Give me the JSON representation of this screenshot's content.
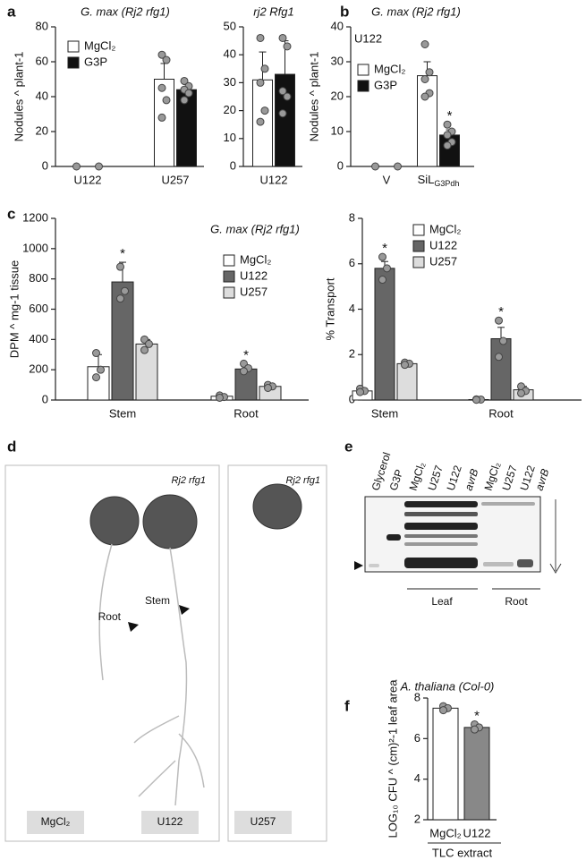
{
  "chart_data": [
    {
      "type": "bar",
      "panel": "a",
      "title": "G. max (Rj2 rfg1)",
      "ylabel": "Nodules ^ plant-1",
      "categories": [
        "U122",
        "U257"
      ],
      "series": [
        {
          "name": "MgCl₂",
          "color": "#ffffff",
          "values": [
            0,
            50
          ],
          "errors": [
            0,
            9
          ],
          "points": [
            [
              0
            ],
            [
              64,
              61,
              45,
              38,
              28
            ]
          ]
        },
        {
          "name": "G3P",
          "color": "#111111",
          "values": [
            0,
            44
          ],
          "errors": [
            0,
            3
          ],
          "points": [
            [
              0
            ],
            [
              49,
              46,
              44,
              42,
              38
            ]
          ]
        }
      ],
      "ylim": [
        0,
        80
      ],
      "yticks": [
        0,
        20,
        40,
        60,
        80
      ],
      "legend": "upper left"
    },
    {
      "type": "bar",
      "title": "rj2 Rfg1",
      "categories": [
        "U122"
      ],
      "series": [
        {
          "color": "#ffffff",
          "values": [
            31
          ],
          "errors": [
            10
          ],
          "points": [
            [
              46,
              35,
              30,
              20,
              16
            ]
          ]
        },
        {
          "color": "#111111",
          "values": [
            33
          ],
          "errors": [
            12
          ],
          "points": [
            [
              46,
              43,
              27,
              25,
              19
            ]
          ]
        }
      ],
      "ylim": [
        0,
        50
      ],
      "yticks": [
        0,
        10,
        20,
        30,
        40,
        50
      ]
    },
    {
      "type": "bar",
      "panel": "b",
      "title": "G. max (Rj2 rfg1)",
      "subtitle": "U122",
      "ylabel": "Nodules ^ plant-1",
      "categories": [
        "V",
        {
          "text": "SiL",
          "sub": "G3Pdh"
        }
      ],
      "series": [
        {
          "name": "MgCl₂",
          "color": "#ffffff",
          "values": [
            0,
            26
          ],
          "errors": [
            0,
            4
          ],
          "points": [
            [
              0
            ],
            [
              35,
              27,
              25,
              21,
              20
            ]
          ]
        },
        {
          "name": "G3P",
          "color": "#111111",
          "values": [
            0,
            9
          ],
          "errors": [
            0,
            1.5
          ],
          "points": [
            [
              0
            ],
            [
              12,
              10,
              9,
              7,
              6
            ]
          ]
        }
      ],
      "annotations": [
        {
          "text": "*",
          "series": 1,
          "category": 1
        }
      ],
      "ylim": [
        0,
        40
      ],
      "yticks": [
        0,
        10,
        20,
        30,
        40
      ],
      "legend": "upper left"
    },
    {
      "type": "bar",
      "panel": "c",
      "title": "G. max (Rj2 rfg1)",
      "ylabel": "DPM ^ mg-1 tissue",
      "categories": [
        "Stem",
        "Root"
      ],
      "series": [
        {
          "name": "MgCl₂",
          "color": "#ffffff",
          "values": [
            220,
            25
          ],
          "errors": [
            80,
            10
          ],
          "points": [
            [
              310,
              200,
              150
            ],
            [
              30,
              20,
              15
            ]
          ]
        },
        {
          "name": "U122",
          "color": "#666666",
          "values": [
            780,
            205
          ],
          "errors": [
            130,
            20
          ],
          "points": [
            [
              880,
              720,
              670
            ],
            [
              240,
              210,
              190
            ]
          ]
        },
        {
          "name": "U257",
          "color": "#dddddd",
          "values": [
            370,
            90
          ],
          "errors": [
            30,
            10
          ],
          "points": [
            [
              400,
              370,
              330
            ],
            [
              100,
              90,
              80
            ]
          ]
        }
      ],
      "annotations": [
        {
          "text": "*",
          "series": 1,
          "category": 0
        },
        {
          "text": "*",
          "series": 1,
          "category": 1
        }
      ],
      "ylim": [
        0,
        1200
      ],
      "yticks": [
        0,
        200,
        400,
        600,
        800,
        1000,
        1200
      ],
      "legend": "upper right"
    },
    {
      "type": "bar",
      "ylabel": "% Transport",
      "categories": [
        "Stem",
        "Root"
      ],
      "series": [
        {
          "name": "MgCl₂",
          "color": "#ffffff",
          "values": [
            0.4,
            0.02
          ],
          "errors": [
            0.1,
            0.01
          ],
          "points": [
            [
              0.5,
              0.4,
              0.35
            ],
            [
              0.03,
              0.02,
              0.01
            ]
          ]
        },
        {
          "name": "U122",
          "color": "#666666",
          "values": [
            5.8,
            2.7
          ],
          "errors": [
            0.3,
            0.5
          ],
          "points": [
            [
              6.3,
              5.8,
              5.3
            ],
            [
              3.5,
              2.6,
              1.9
            ]
          ]
        },
        {
          "name": "U257",
          "color": "#dddddd",
          "values": [
            1.6,
            0.45
          ],
          "errors": [
            0.05,
            0.15
          ],
          "points": [
            [
              1.65,
              1.6,
              1.55
            ],
            [
              0.6,
              0.4,
              0.3
            ]
          ]
        }
      ],
      "annotations": [
        {
          "text": "*",
          "series": 1,
          "category": 0
        },
        {
          "text": "*",
          "series": 1,
          "category": 1
        }
      ],
      "ylim": [
        0,
        8
      ],
      "yticks": [
        0,
        2,
        4,
        6,
        8
      ],
      "legend": "upper right"
    },
    {
      "type": "bar",
      "panel": "f",
      "title": "A. thaliana (Col-0)",
      "ylabel": "LOG₁₀ CFU ^ (cm)²-1 leaf area",
      "categories": [
        "MgCl₂",
        "U122"
      ],
      "group_label": "TLC extract",
      "series": [
        {
          "colors": [
            "#ffffff",
            "#888888"
          ],
          "values": [
            7.5,
            6.55
          ],
          "errors": [
            0.1,
            0.1
          ],
          "points": [
            [
              7.6,
              7.5,
              7.4
            ],
            [
              6.7,
              6.55,
              6.45
            ]
          ]
        }
      ],
      "annotations": [
        {
          "text": "*",
          "series": 0,
          "category": 1
        }
      ],
      "ylim": [
        2,
        8
      ],
      "yticks": [
        2,
        4,
        6,
        8
      ]
    }
  ],
  "panel_d": {
    "panel": "d",
    "genotype": [
      "Rj2 rfg1",
      "Rj2 rfg1"
    ],
    "stem": "Stem",
    "root": "Root",
    "treatments": [
      "MgCl₂",
      "U122",
      "U257"
    ]
  },
  "panel_e": {
    "panel": "e",
    "lanes": [
      "Glycerol",
      "G3P",
      "MgCl₂",
      "U257",
      "U122",
      "avrB",
      "MgCl₂",
      "U257",
      "U122",
      "avrB"
    ],
    "groups": [
      "Leaf",
      "Root"
    ]
  }
}
